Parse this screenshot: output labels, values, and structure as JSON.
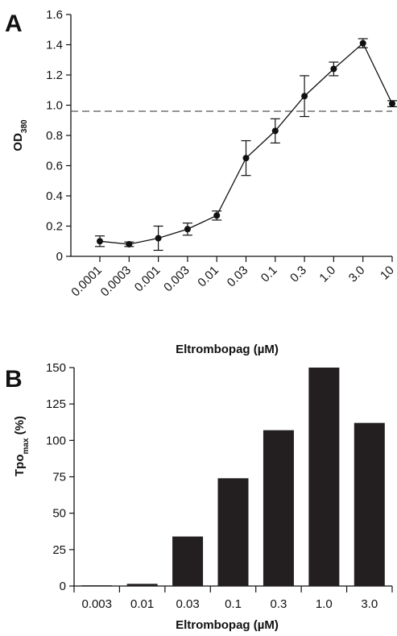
{
  "chart_data": [
    {
      "panel": "A",
      "type": "line",
      "xlabel": "Eltrombopag (µM)",
      "ylabel": "OD",
      "ylabel_sub": "380",
      "x": [
        "0.0001",
        "0.0003",
        "0.001",
        "0.003",
        "0.01",
        "0.03",
        "0.1",
        "0.3",
        "1.0",
        "3.0",
        "10"
      ],
      "series": [
        {
          "values": [
            0.1,
            0.08,
            0.12,
            0.18,
            0.27,
            0.65,
            0.83,
            1.06,
            1.24,
            1.41,
            1.01
          ],
          "errors": [
            0.035,
            0.015,
            0.08,
            0.04,
            0.03,
            0.115,
            0.08,
            0.135,
            0.045,
            0.03,
            0.02
          ]
        }
      ],
      "reference_line": 0.96,
      "ylim": [
        0,
        1.6
      ],
      "yticks": [
        "0",
        "0.2",
        "0.4",
        "0.6",
        "0.8",
        "1.0",
        "1.2",
        "1.4",
        "1.6"
      ],
      "ytick_values": [
        0,
        0.2,
        0.4,
        0.6,
        0.8,
        1.0,
        1.2,
        1.4,
        1.6
      ],
      "grid": false,
      "colors": {
        "line": "#111111",
        "reference": "#555555"
      }
    },
    {
      "panel": "B",
      "type": "bar",
      "xlabel": "Eltrombopag (µM)",
      "ylabel": "Tpo",
      "ylabel_sub": "max",
      "ylabel_suffix": " (%)",
      "categories": [
        "0.003",
        "0.01",
        "0.03",
        "0.1",
        "0.3",
        "1.0",
        "3.0"
      ],
      "values": [
        0.5,
        1.5,
        34,
        74,
        107,
        150,
        112
      ],
      "ylim": [
        0,
        150
      ],
      "yticks": [
        "0",
        "25",
        "50",
        "75",
        "100",
        "125",
        "150"
      ],
      "ytick_values": [
        0,
        25,
        50,
        75,
        100,
        125,
        150
      ],
      "grid": false,
      "colors": {
        "bar": "#231f20"
      }
    }
  ]
}
